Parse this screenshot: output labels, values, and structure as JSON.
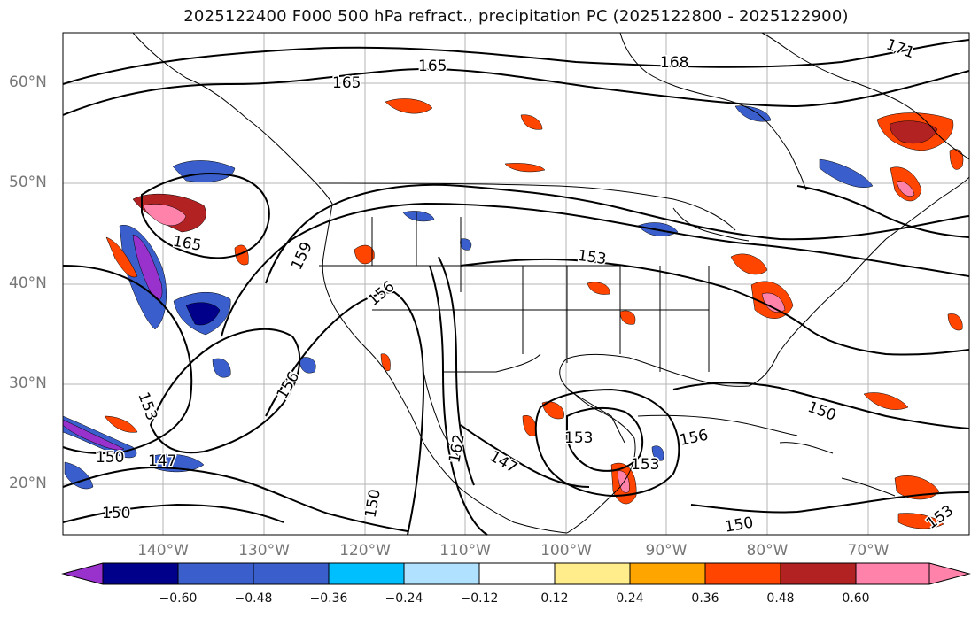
{
  "title": "2025122400 F000 500 hPa refract., precipitation PC (2025122800 - 2025122900)",
  "map": {
    "extent_lon": [
      -149,
      -59
    ],
    "extent_lat": [
      15,
      65
    ],
    "lat_labels": [
      "60°N",
      "50°N",
      "40°N",
      "30°N",
      "20°N"
    ],
    "lon_labels": [
      "140°W",
      "130°W",
      "120°W",
      "110°W",
      "100°W",
      "90°W",
      "80°W",
      "70°W"
    ],
    "contour_labels": [
      "165",
      "165",
      "168",
      "171",
      "165",
      "159",
      "156",
      "153",
      "156",
      "153",
      "150",
      "147",
      "150",
      "147",
      "162",
      "153",
      "156",
      "153",
      "150",
      "150",
      "153",
      "150"
    ]
  },
  "colorbar": {
    "ticks": [
      "−0.60",
      "−0.48",
      "−0.36",
      "−0.24",
      "−0.12",
      "0.12",
      "0.24",
      "0.36",
      "0.48",
      "0.60"
    ],
    "colors": [
      "#9932CC",
      "#00008B",
      "#3A5FCD",
      "#00BFFF",
      "#B0E2FF",
      "#FFFFFF",
      "#FFEC8B",
      "#FFA500",
      "#FF4500",
      "#B22222",
      "#FF82AB"
    ]
  }
}
